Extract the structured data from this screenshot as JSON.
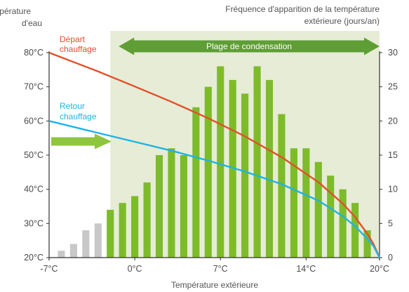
{
  "chart_data": {
    "type": "bar",
    "title": "",
    "left_axis_label": [
      "Température",
      "d'eau"
    ],
    "right_axis_label": [
      "Fréquence d'apparition de la température",
      "extérieure (jours/an)"
    ],
    "xlabel": "Température extérieure",
    "x_ticks": [
      "-7°C",
      "0°C",
      "7°C",
      "14°C",
      "20°C"
    ],
    "x_tick_values": [
      -7,
      0,
      7,
      14,
      20
    ],
    "xlim": [
      -7,
      20
    ],
    "y_left_ticks": [
      "20°C",
      "30°C",
      "40°C",
      "50°C",
      "60°C",
      "70°C",
      "80°C"
    ],
    "y_left_tick_values": [
      20,
      30,
      40,
      50,
      60,
      70,
      80
    ],
    "ylim_left": [
      20,
      80
    ],
    "y_right_ticks": [
      "0",
      "5",
      "10",
      "15",
      "20",
      "25",
      "30"
    ],
    "y_right_tick_values": [
      0,
      5,
      10,
      15,
      20,
      25,
      30
    ],
    "ylim_right": [
      0,
      30
    ],
    "condensation_range": {
      "label": "Plage de condensation",
      "from": -2,
      "to": 20
    },
    "bars": {
      "x": [
        -6,
        -5,
        -4,
        -3,
        -2,
        -1,
        0,
        1,
        2,
        3,
        4,
        5,
        6,
        7,
        8,
        9,
        10,
        11,
        12,
        13,
        14,
        15,
        16,
        17,
        18,
        19
      ],
      "values": [
        1,
        2,
        4,
        5,
        7,
        8,
        9,
        11,
        15,
        16,
        15,
        22,
        25,
        28,
        26,
        24,
        28,
        26,
        21,
        16,
        16,
        14,
        12,
        10,
        8,
        4
      ],
      "colors": {
        "below_range": "#c8c8c8",
        "in_range": "#7dbb2a"
      }
    },
    "series": [
      {
        "name": "Départ chauffage",
        "color": "#e2502a",
        "x": [
          -7,
          -3,
          0,
          3,
          6,
          9,
          12,
          15,
          17,
          18,
          19,
          19.5,
          20
        ],
        "y": [
          80,
          74.5,
          70.1,
          65.6,
          60.8,
          55.5,
          49.4,
          42.1,
          35.8,
          31.9,
          27,
          24,
          20
        ]
      },
      {
        "name": "Retour chauffage",
        "color": "#1fb3e5",
        "x": [
          -7,
          -3,
          0,
          3,
          6,
          9,
          12,
          15,
          17,
          18,
          19,
          19.5,
          20
        ],
        "y": [
          60,
          56.5,
          53.9,
          51.3,
          48.4,
          45.2,
          41.5,
          36.7,
          32.1,
          29.2,
          25.5,
          23.4,
          20
        ]
      }
    ],
    "arrow_level": 54,
    "colors": {
      "band": "#e6ecd6",
      "band_arrow": "#5e9e34",
      "arrow": "#8ec63f",
      "axis": "#333333"
    }
  }
}
